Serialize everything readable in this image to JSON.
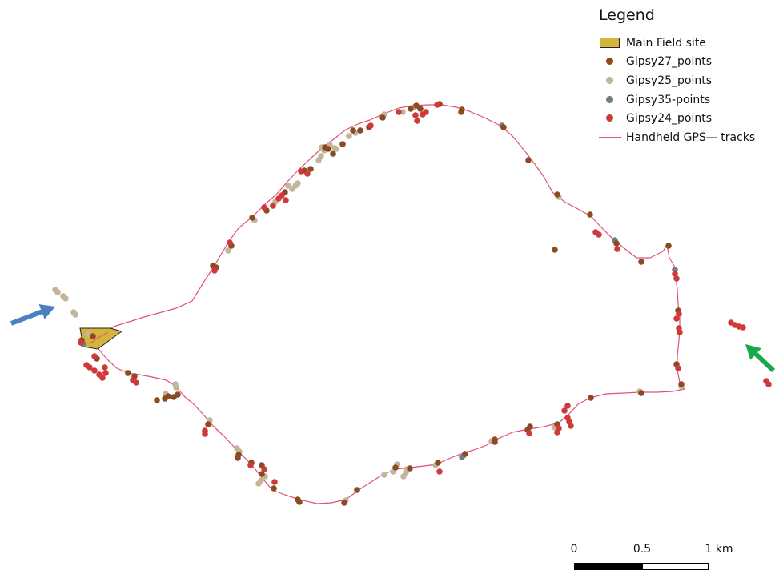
{
  "legend": {
    "title": "Legend",
    "items": [
      {
        "label": "Main Field site",
        "symbol": "polygon",
        "color": "#D4B43C",
        "stroke": "#222222"
      },
      {
        "label": "Gipsy27_points",
        "symbol": "dot",
        "color": "#8B4A22"
      },
      {
        "label": "Gipsy25_points",
        "symbol": "dot",
        "color": "#C2B59A"
      },
      {
        "label": "Gipsy35-points",
        "symbol": "dot",
        "color": "#6F7F80"
      },
      {
        "label": "Gipsy24_points",
        "symbol": "dot",
        "color": "#D0393A"
      },
      {
        "label": "Handheld GPS— tracks",
        "symbol": "line",
        "color": "#E0507A"
      }
    ]
  },
  "scalebar": {
    "labels": [
      "0",
      "0.5",
      "1 km"
    ],
    "fill_color": "#000000"
  },
  "arrows": [
    {
      "name": "blue-arrow",
      "color": "#4A7FC1"
    },
    {
      "name": "green-arrow",
      "color": "#1AA84A"
    }
  ]
}
